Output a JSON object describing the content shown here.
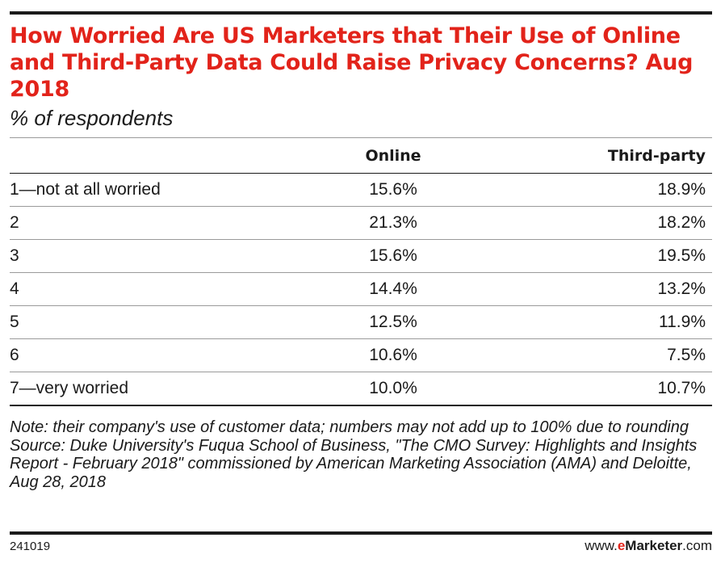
{
  "chart_data": {
    "type": "table",
    "title": "How Worried Are US Marketers that Their Use of Online and Third-Party Data Could Raise Privacy Concerns? Aug 2018",
    "subtitle": "% of respondents",
    "columns": [
      "",
      "Online",
      "Third-party"
    ],
    "rows": [
      {
        "label": "1—not at all worried",
        "online": "15.6%",
        "third_party": "18.9%"
      },
      {
        "label": "2",
        "online": "21.3%",
        "third_party": "18.2%"
      },
      {
        "label": "3",
        "online": "15.6%",
        "third_party": "19.5%"
      },
      {
        "label": "4",
        "online": "14.4%",
        "third_party": "13.2%"
      },
      {
        "label": "5",
        "online": "12.5%",
        "third_party": "11.9%"
      },
      {
        "label": "6",
        "online": "10.6%",
        "third_party": "7.5%"
      },
      {
        "label": "7—very worried",
        "online": "10.0%",
        "third_party": "10.7%"
      }
    ],
    "series": [
      {
        "name": "Online",
        "values": [
          15.6,
          21.3,
          15.6,
          14.4,
          12.5,
          10.6,
          10.0
        ]
      },
      {
        "name": "Third-party",
        "values": [
          18.9,
          18.2,
          19.5,
          13.2,
          11.9,
          7.5,
          10.7
        ]
      }
    ],
    "note": "Note: their company's use of customer data; numbers may not add up to 100% due to rounding",
    "source": "Source: Duke University's Fuqua School of Business, \"The CMO Survey: Highlights and Insights Report - February 2018\" commissioned by American Marketing Association (AMA) and Deloitte, Aug 28, 2018"
  },
  "footer": {
    "id": "241019",
    "brand_prefix": "www.",
    "brand_e": "e",
    "brand_name": "Marketer",
    "brand_suffix": ".com"
  },
  "colors": {
    "accent": "#e2231a",
    "text": "#1a1a1a",
    "rule": "#9a9a9a"
  }
}
